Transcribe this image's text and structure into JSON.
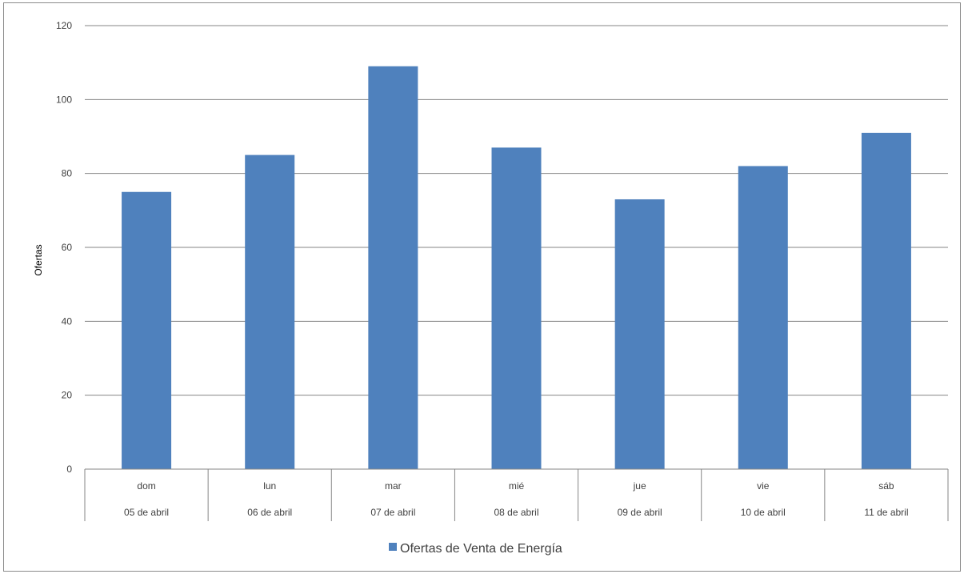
{
  "chart_data": {
    "type": "bar",
    "categories": [
      "dom",
      "lun",
      "mar",
      "mié",
      "jue",
      "vie",
      "sáb"
    ],
    "category_dates": [
      "05 de abril",
      "06 de abril",
      "07 de abril",
      "08 de abril",
      "09 de abril",
      "10 de abril",
      "11 de abril"
    ],
    "series": [
      {
        "name": "Ofertas de Venta de Energía",
        "values": [
          75,
          85,
          109,
          87,
          73,
          82,
          91
        ],
        "color": "#4f81bd"
      }
    ],
    "ylabel": "Ofertas",
    "xlabel": "",
    "ylim": [
      0,
      120
    ],
    "yticks": [
      0,
      20,
      40,
      60,
      80,
      100,
      120
    ],
    "grid": true,
    "legend_position": "bottom"
  }
}
